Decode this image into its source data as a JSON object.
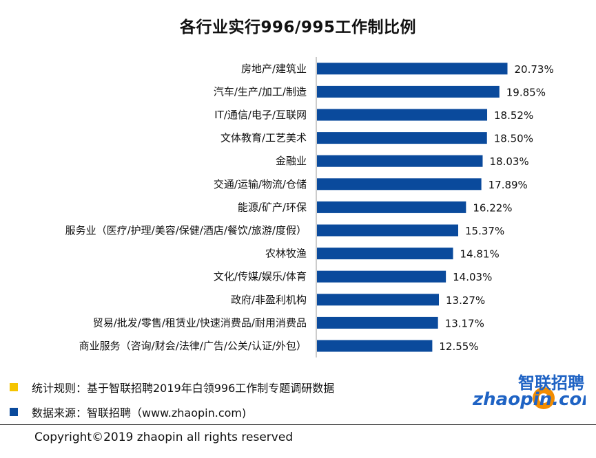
{
  "chart_data": {
    "type": "bar",
    "orientation": "horizontal",
    "title": "各行业实行996/995工作制比例",
    "categories": [
      "房地产/建筑业",
      "汽车/生产/加工/制造",
      "IT/通信/电子/互联网",
      "文体教育/工艺美术",
      "金融业",
      "交通/运输/物流/仓储",
      "能源/矿产/环保",
      "服务业（医疗/护理/美容/保健/酒店/餐饮/旅游/度假）",
      "农林牧渔",
      "文化/传媒/娱乐/体育",
      "政府/非盈利机构",
      "贸易/批发/零售/租赁业/快速消费品/耐用消费品",
      "商业服务（咨询/财会/法律/广告/公关/认证/外包）"
    ],
    "values": [
      20.73,
      19.85,
      18.52,
      18.5,
      18.03,
      17.89,
      16.22,
      15.37,
      14.81,
      14.03,
      13.27,
      13.17,
      12.55
    ],
    "value_labels": [
      "20.73%",
      "19.85%",
      "18.52%",
      "18.50%",
      "18.03%",
      "17.89%",
      "16.22%",
      "15.37%",
      "14.81%",
      "14.03%",
      "13.27%",
      "13.17%",
      "12.55%"
    ],
    "xlim": [
      0,
      22
    ],
    "grid": false,
    "bar_color": "#0a4a9c"
  },
  "notes": [
    {
      "text": "统计规则：基于智联招聘2019年白领996工作制专题调研数据",
      "color": "#f5c400"
    },
    {
      "text": "数据来源：智联招聘（www.zhaopin.com)",
      "color": "#0a4a9c"
    }
  ],
  "footer": {
    "copyright": "Copyright©2019 zhaopin all rights reserved"
  },
  "logo": {
    "brand_cn": "智联招聘",
    "brand_en": "zhaopin.com",
    "blue": "#1f63c4",
    "orange": "#f28c00"
  }
}
